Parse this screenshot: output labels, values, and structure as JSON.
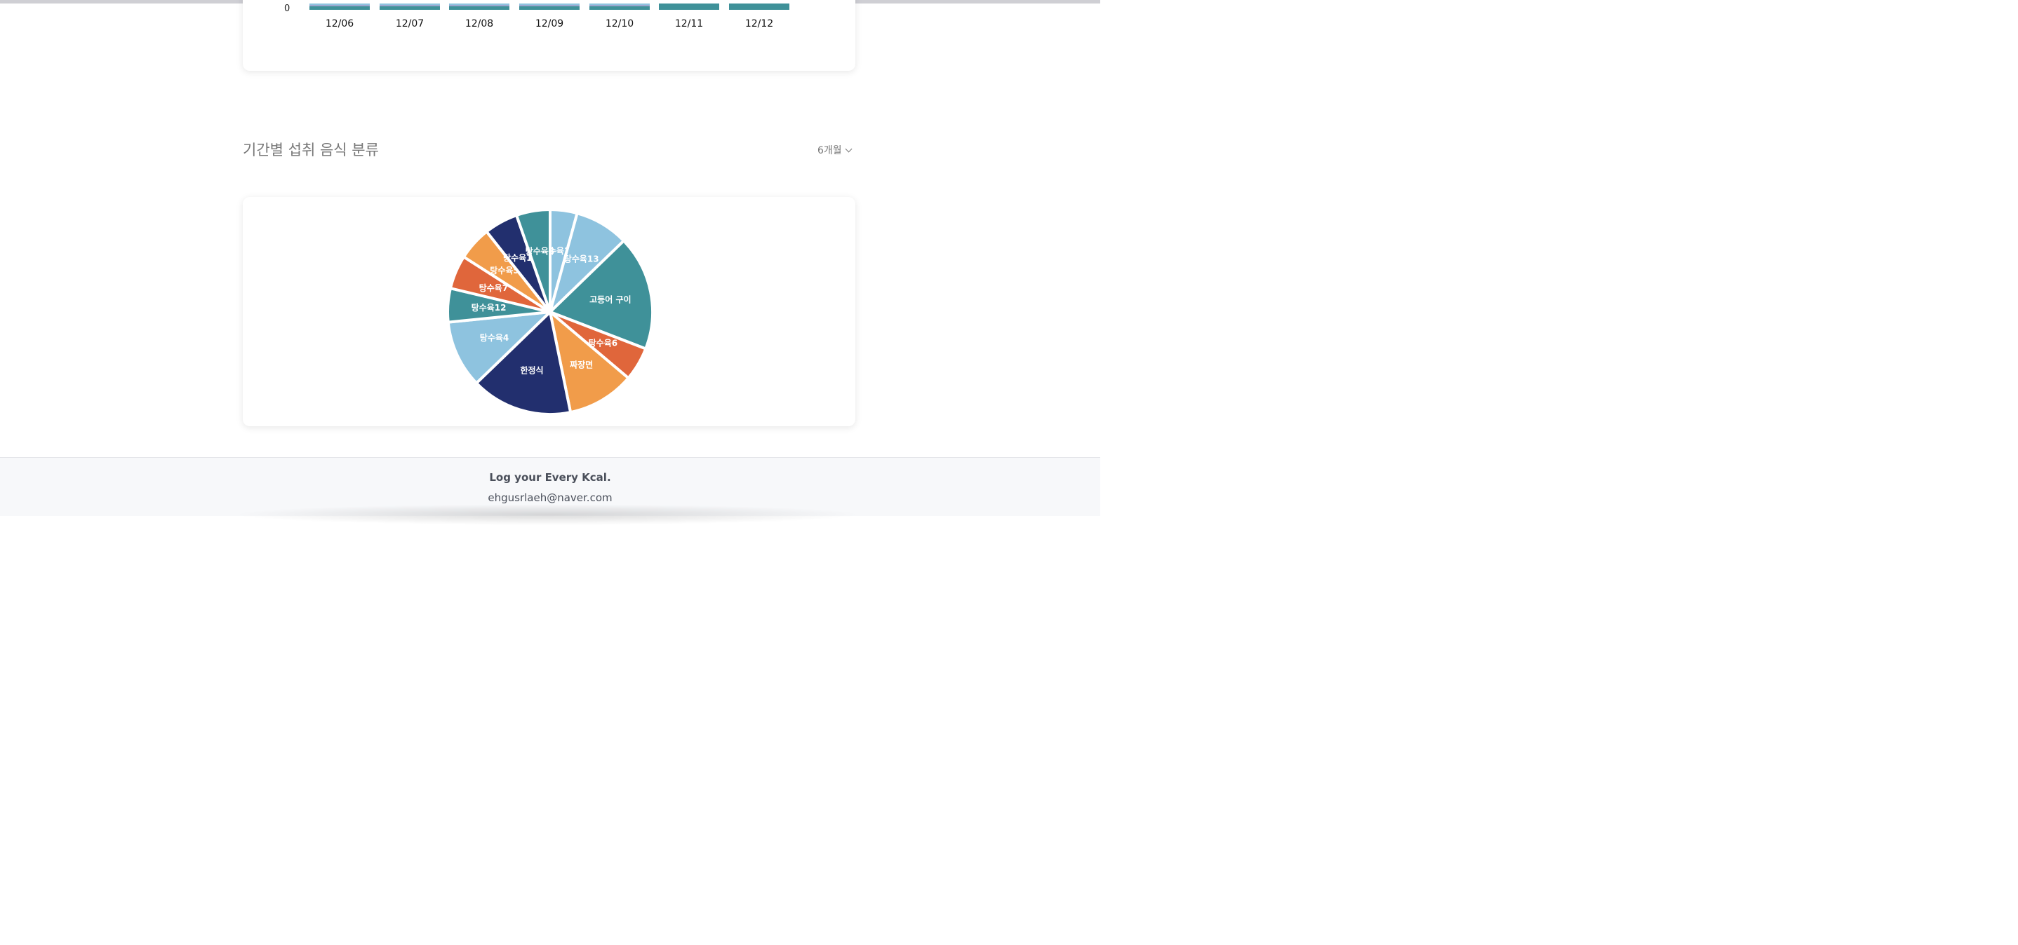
{
  "daily_chart": {
    "y_zero_label": "0",
    "x_labels": [
      "12/06",
      "12/07",
      "12/08",
      "12/09",
      "12/10",
      "12/11",
      "12/12"
    ]
  },
  "food_section": {
    "title": "기간별 섭취 음식 분류",
    "period_label": "6개월"
  },
  "chart_data": {
    "type": "pie",
    "title": "",
    "slices": [
      {
        "label": "탕수육14",
        "value": 4,
        "color": "#8ec3df"
      },
      {
        "label": "탕수육13",
        "value": 8,
        "color": "#8ec3df"
      },
      {
        "label": "고등어 구이",
        "value": 17,
        "color": "#3f9199"
      },
      {
        "label": "탕수육6",
        "value": 5,
        "color": "#e0663b"
      },
      {
        "label": "짜장면",
        "value": 10,
        "color": "#f19c4a"
      },
      {
        "label": "한정식",
        "value": 15,
        "color": "#222f6e"
      },
      {
        "label": "탕수육4",
        "value": 10,
        "color": "#8ec3df"
      },
      {
        "label": "탕수육12",
        "value": 5,
        "color": "#3f9199"
      },
      {
        "label": "탕수육7",
        "value": 5,
        "color": "#e0663b"
      },
      {
        "label": "탕수육5",
        "value": 5,
        "color": "#f19c4a"
      },
      {
        "label": "탕수육16",
        "value": 5,
        "color": "#222f6e"
      },
      {
        "label": "탕수육8",
        "value": 5,
        "color": "#3f9199"
      }
    ]
  },
  "footer": {
    "slogan": "Log your Every Kcal.",
    "email": "ehgusrlaeh@naver.com"
  }
}
